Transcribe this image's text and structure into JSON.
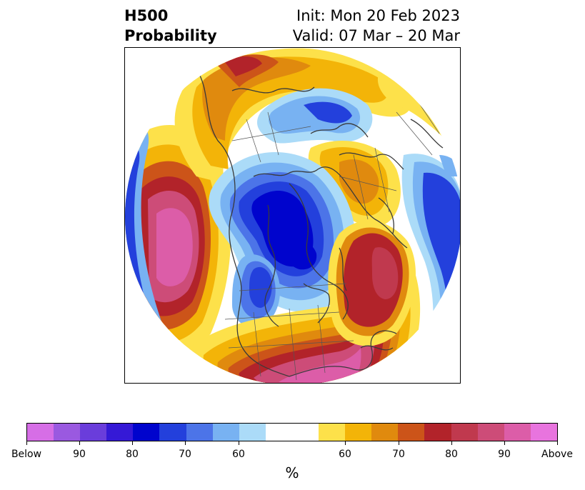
{
  "title": {
    "left_line1": "H500",
    "left_line2": "Probability",
    "right_line1": "Init: Mon 20 Feb 2023",
    "right_line2": "Valid: 07 Mar – 20 Mar"
  },
  "legend": {
    "unit": "%",
    "tick_labels": [
      "Below",
      "90",
      "80",
      "70",
      "60",
      "60",
      "70",
      "80",
      "90",
      "Above"
    ],
    "colors": {
      "below": [
        "#d66ee6",
        "#9a59e0",
        "#6a3ddb",
        "#3519d6",
        "#0004cd",
        "#2340dc",
        "#4c74e8",
        "#78b2f2",
        "#abdbf8"
      ],
      "neutral": "#ffffff",
      "above": [
        "#fde14a",
        "#f3b408",
        "#e08a0e",
        "#cc5419",
        "#b2232a",
        "#c0394e",
        "#cd4c78",
        "#dc5da8",
        "#e874de"
      ]
    }
  },
  "map": {
    "projection": "north-polar-stereographic",
    "variable": "500 hPa height probability"
  }
}
